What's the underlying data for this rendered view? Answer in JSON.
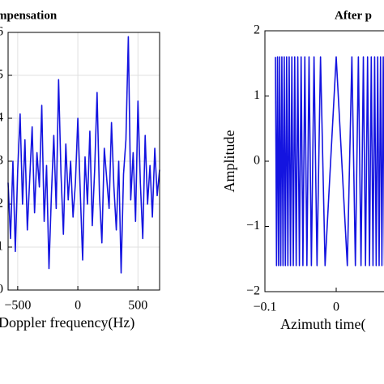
{
  "chart_data": [
    {
      "type": "line",
      "title": "mpensation",
      "xlabel": "Doppler frequency(Hz)",
      "x": [
        -580,
        -560,
        -540,
        -520,
        -500,
        -480,
        -460,
        -440,
        -420,
        -400,
        -380,
        -360,
        -340,
        -320,
        -300,
        -280,
        -260,
        -240,
        -220,
        -200,
        -180,
        -160,
        -140,
        -120,
        -100,
        -80,
        -60,
        -40,
        -20,
        0,
        20,
        40,
        60,
        80,
        100,
        120,
        140,
        160,
        180,
        200,
        220,
        240,
        260,
        280,
        300,
        320,
        340,
        360,
        380,
        400,
        420,
        440,
        460,
        480,
        500,
        520,
        540,
        560,
        580,
        600,
        620,
        640,
        660,
        680
      ],
      "series": [
        {
          "name": "signal",
          "color": "#1414e0",
          "values": [
            2.5,
            1.2,
            3.0,
            0.9,
            2.8,
            4.1,
            2.0,
            3.5,
            1.4,
            2.6,
            3.8,
            1.8,
            3.2,
            2.4,
            4.3,
            1.6,
            2.9,
            0.5,
            2.2,
            3.6,
            1.9,
            4.9,
            2.7,
            1.3,
            3.4,
            2.1,
            3.0,
            1.7,
            2.5,
            4.0,
            2.3,
            0.7,
            3.1,
            2.0,
            3.7,
            1.5,
            2.8,
            4.6,
            2.2,
            1.1,
            3.3,
            2.6,
            1.9,
            3.9,
            2.4,
            1.4,
            3.0,
            0.4,
            2.7,
            3.5,
            5.9,
            2.1,
            3.2,
            1.6,
            4.4,
            2.5,
            1.2,
            3.6,
            2.0,
            2.9,
            1.7,
            3.3,
            2.2,
            2.8
          ]
        }
      ],
      "xlim": [
        -580,
        680
      ],
      "xticks": [
        {
          "value": -500,
          "label": "−500"
        },
        0,
        500
      ],
      "ylim": [
        0,
        6
      ],
      "yticks": [
        0,
        1,
        2,
        3,
        4,
        5,
        6
      ],
      "grid": true
    },
    {
      "type": "line",
      "title": "After p",
      "xlabel": "Azimuth time(",
      "ylabel": "Amplitude",
      "x": [
        -0.0852,
        -0.0837,
        -0.0823,
        -0.0808,
        -0.0793,
        -0.0778,
        -0.0762,
        -0.0746,
        -0.0729,
        -0.0713,
        -0.0695,
        -0.0678,
        -0.066,
        -0.0641,
        -0.0622,
        -0.0602,
        -0.0582,
        -0.0561,
        -0.0539,
        -0.0516,
        -0.0492,
        -0.0467,
        -0.044,
        -0.0411,
        -0.0381,
        -0.0348,
        -0.0311,
        -0.0269,
        -0.022,
        -0.0156,
        0,
        0.0156,
        0.022,
        0.0269,
        0.0311,
        0.0348,
        0.0381,
        0.0411,
        0.044,
        0.0467,
        0.0492,
        0.0516,
        0.0539,
        0.0561,
        0.0582,
        0.0602,
        0.0622,
        0.0641,
        0.066,
        0.0678
      ],
      "series": [
        {
          "name": "signal",
          "color": "#1414e0",
          "values": [
            1.6,
            -1.6,
            1.6,
            -1.6,
            1.6,
            -1.6,
            1.6,
            -1.6,
            1.6,
            -1.6,
            1.6,
            -1.6,
            1.6,
            -1.6,
            1.6,
            -1.6,
            1.6,
            -1.6,
            1.6,
            -1.6,
            1.6,
            -1.6,
            1.6,
            -1.6,
            1.6,
            -1.6,
            1.6,
            -1.6,
            1.6,
            -1.6,
            1.6,
            -1.6,
            1.6,
            -1.6,
            1.6,
            -1.6,
            1.6,
            -1.6,
            1.6,
            -1.6,
            1.6,
            -1.6,
            1.6,
            -1.6,
            1.6,
            -1.6,
            1.6,
            -1.6,
            1.6,
            -1.6
          ]
        }
      ],
      "xlim": [
        -0.1,
        0.1
      ],
      "xticks": [
        {
          "value": -0.1,
          "label": "−0.1"
        },
        0
      ],
      "ylim": [
        -2,
        2
      ],
      "yticks": [
        {
          "value": -2,
          "label": "−2"
        },
        {
          "value": -1,
          "label": "−1"
        },
        0,
        1,
        2
      ],
      "grid": false
    }
  ]
}
